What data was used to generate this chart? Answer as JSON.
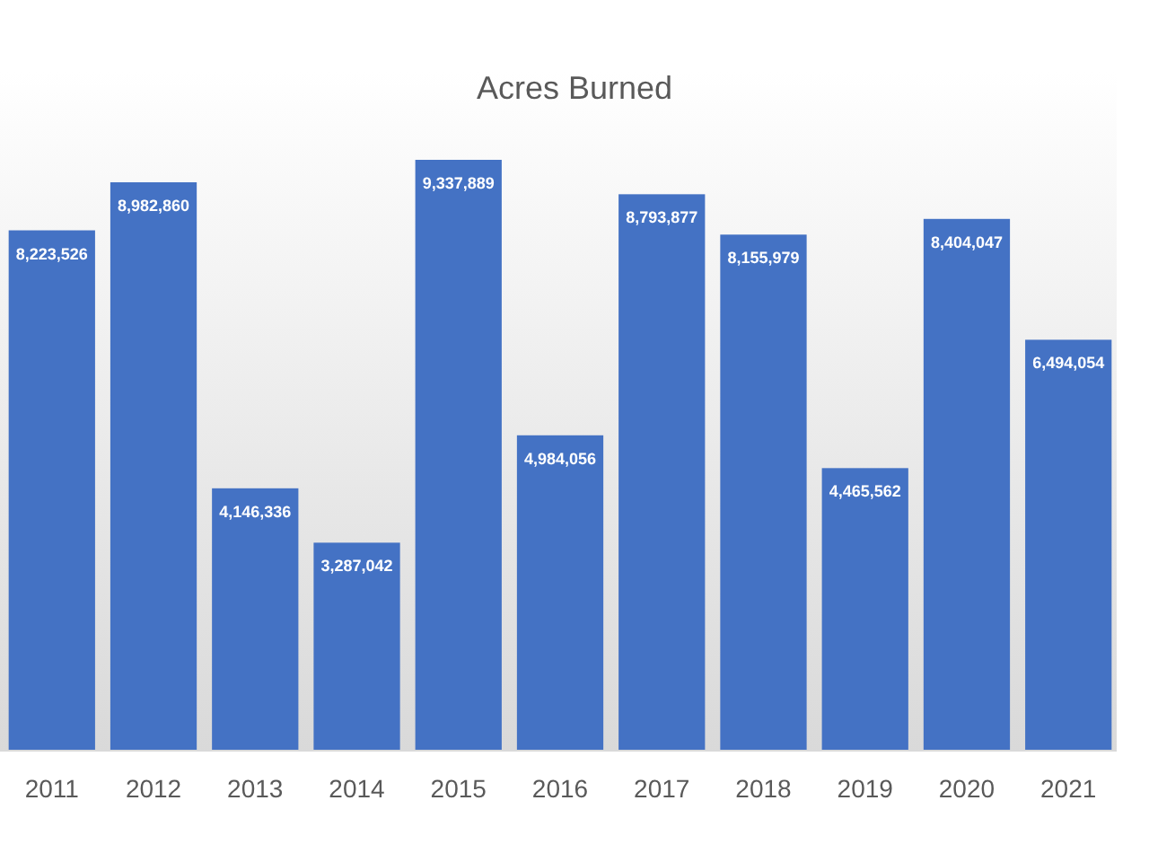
{
  "chart_data": {
    "type": "bar",
    "title": "Acres Burned",
    "categories": [
      "2011",
      "2012",
      "2013",
      "2014",
      "2015",
      "2016",
      "2017",
      "2018",
      "2019",
      "2020",
      "2021"
    ],
    "values": [
      8223526,
      8982860,
      4146336,
      3287042,
      9337889,
      4984056,
      8793877,
      8155979,
      4465562,
      8404047,
      6494054
    ],
    "value_labels": [
      "8,223,526",
      "8,982,860",
      "4,146,336",
      "3,287,042",
      "9,337,889",
      "4,984,056",
      "8,793,877",
      "8,155,979",
      "4,465,562",
      "8,404,047",
      "6,494,054"
    ],
    "color": "#4472c4"
  }
}
